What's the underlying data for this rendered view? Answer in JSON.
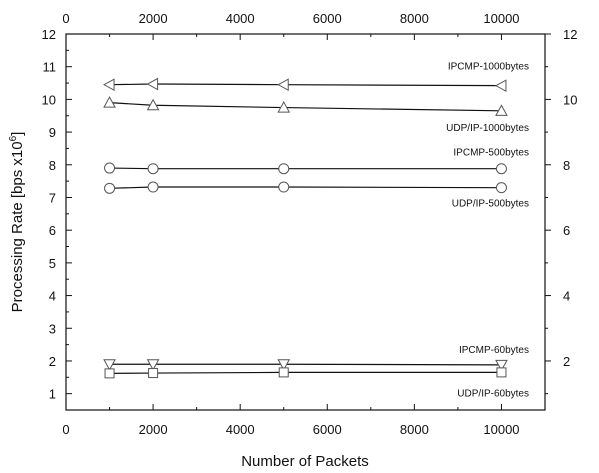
{
  "chart_data": {
    "type": "line",
    "xlabel": "Number of Packets",
    "ylabel": "Processing Rate [bps x10",
    "ylabel_sup": "6",
    "ylabel_close": "]",
    "xlim": [
      0,
      11000
    ],
    "ylim": [
      0.5,
      12
    ],
    "x_ticks": [
      0,
      2000,
      4000,
      6000,
      8000,
      10000
    ],
    "x_tick_labels": [
      "0",
      "2000",
      "4000",
      "6000",
      "8000",
      "10000"
    ],
    "y_left_ticks": [
      1,
      2,
      3,
      4,
      5,
      6,
      7,
      8,
      9,
      10,
      11,
      12
    ],
    "y_left_tick_labels": [
      "1",
      "2",
      "3",
      "4",
      "5",
      "6",
      "7",
      "8",
      "9",
      "10",
      "11",
      "12"
    ],
    "y_right_ticks": [
      2,
      4,
      6,
      8,
      10,
      12
    ],
    "y_right_tick_labels": [
      "2",
      "4",
      "6",
      "8",
      "10",
      "12"
    ],
    "grid": false,
    "series": [
      {
        "name": "IPCMP-1000bytes",
        "marker": "triangle-left",
        "x": [
          1000,
          2000,
          5000,
          10000
        ],
        "y": [
          10.45,
          10.47,
          10.45,
          10.42
        ]
      },
      {
        "name": "UDP/IP-1000bytes",
        "marker": "triangle-up",
        "x": [
          1000,
          2000,
          5000,
          10000
        ],
        "y": [
          9.9,
          9.82,
          9.75,
          9.65
        ]
      },
      {
        "name": "IPCMP-500bytes",
        "marker": "circle",
        "x": [
          1000,
          2000,
          5000,
          10000
        ],
        "y": [
          7.9,
          7.88,
          7.88,
          7.88
        ]
      },
      {
        "name": "UDP/IP-500bytes",
        "marker": "circle",
        "x": [
          1000,
          2000,
          5000,
          10000
        ],
        "y": [
          7.28,
          7.32,
          7.32,
          7.3
        ]
      },
      {
        "name": "IPCMP-60bytes",
        "marker": "triangle-down",
        "x": [
          1000,
          2000,
          5000,
          10000
        ],
        "y": [
          1.9,
          1.9,
          1.9,
          1.88
        ]
      },
      {
        "name": "UDP/IP-60bytes",
        "marker": "square",
        "x": [
          1000,
          2000,
          5000,
          10000
        ],
        "y": [
          1.62,
          1.63,
          1.65,
          1.65
        ]
      }
    ]
  }
}
